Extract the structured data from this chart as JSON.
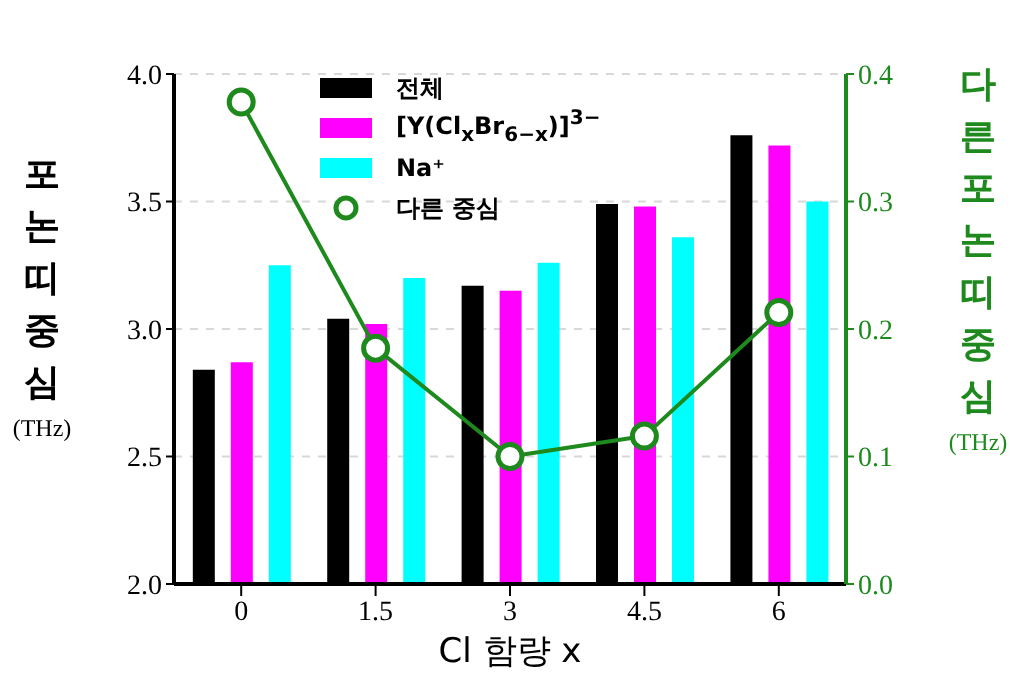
{
  "chart_data": {
    "type": "bar",
    "xlabel": "Cl 함량 x",
    "ylabel": "포논띠중심 (THz)",
    "y2label": "다른포논띠중심 (THz)",
    "categories": [
      "0",
      "1.5",
      "3",
      "4.5",
      "6"
    ],
    "series": [
      {
        "name": "전체",
        "color": "#000000",
        "values": [
          2.84,
          3.04,
          3.17,
          3.49,
          3.76
        ]
      },
      {
        "name": "[Y(Cl$_{x}$Br$_{6−x}$)]$^{3−}$",
        "color": "#ff00ff",
        "values": [
          2.87,
          3.02,
          3.15,
          3.48,
          3.72
        ]
      },
      {
        "name": "Na⁺",
        "color": "#00ffff",
        "values": [
          3.25,
          3.2,
          3.26,
          3.36,
          3.5
        ]
      },
      {
        "name": "다른 중심",
        "type": "line",
        "axis": "y2",
        "color": "#1e8a1e",
        "marker": "circle",
        "values": [
          0.378,
          0.185,
          0.1,
          0.116,
          0.213
        ]
      }
    ],
    "ylim": [
      2,
      4
    ],
    "yticks": [
      {
        "value": 2,
        "label": "2.0"
      },
      {
        "value": 2.5,
        "label": "2.5"
      },
      {
        "value": 3,
        "label": "3.0"
      },
      {
        "value": 3.5,
        "label": "3.5"
      },
      {
        "value": 4,
        "label": "4.0"
      }
    ],
    "y2lim": [
      0,
      0.4
    ],
    "y2ticks": [
      {
        "value": 0,
        "label": "0.0"
      },
      {
        "value": 0.1,
        "label": "0.1"
      },
      {
        "value": 0.2,
        "label": "0.2"
      },
      {
        "value": 0.3,
        "label": "0.3"
      },
      {
        "value": 0.4,
        "label": "0.4"
      }
    ],
    "grid": "y",
    "legend": "top"
  }
}
